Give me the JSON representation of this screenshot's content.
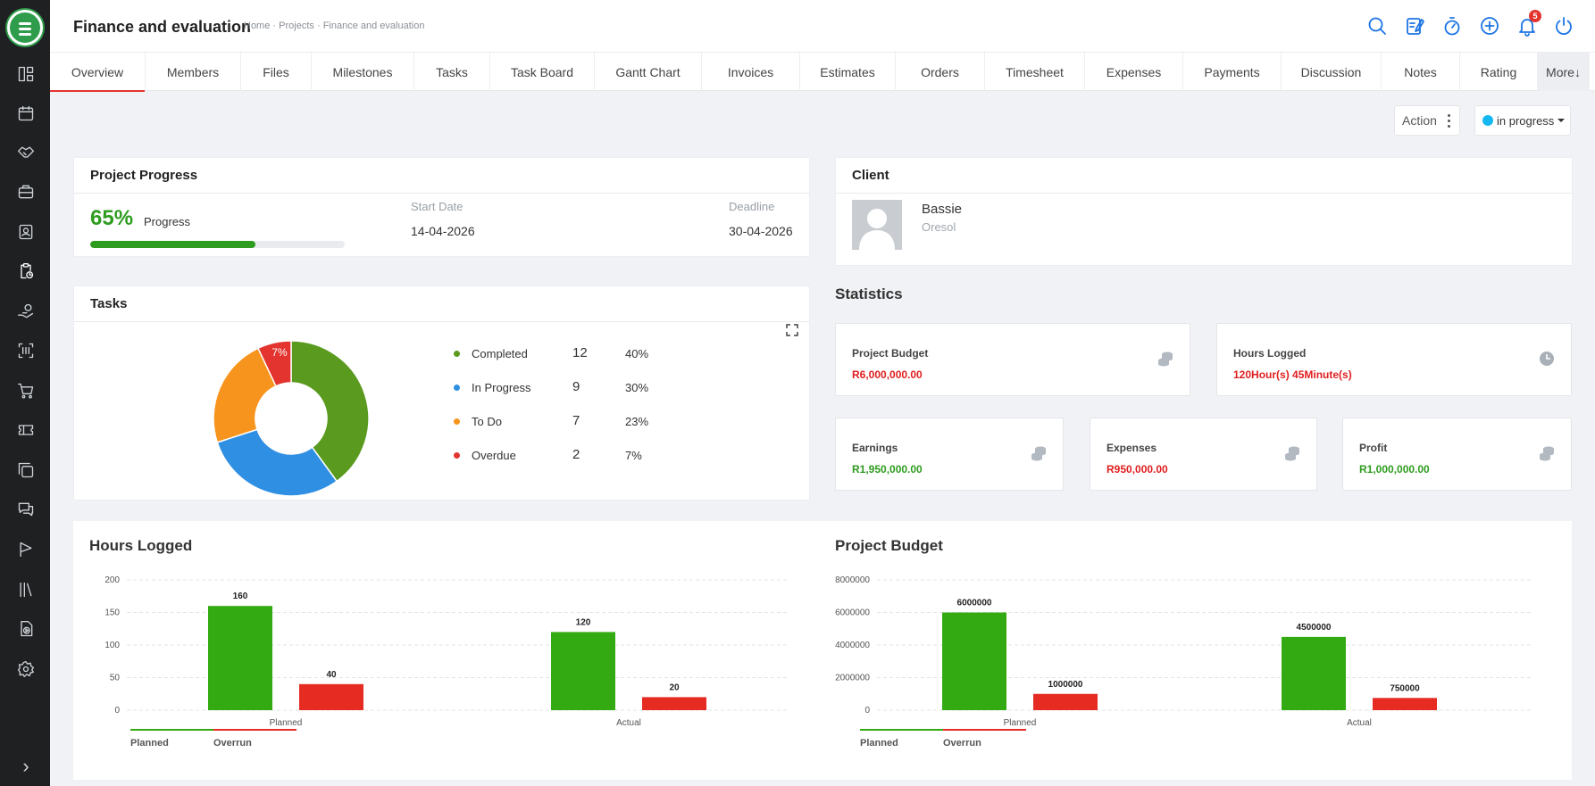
{
  "header": {
    "title": "Finance and evaluation",
    "breadcrumb": [
      "Home",
      "Projects",
      "Finance and evaluation"
    ],
    "breadcrumb_sep": "·",
    "notifications_count": "5",
    "icons": [
      "search-icon",
      "notes-icon",
      "timer-icon",
      "add-icon",
      "bell-icon",
      "power-icon"
    ]
  },
  "sidebar": {
    "icons": [
      "dashboard-icon",
      "calendar-icon",
      "handshake-icon",
      "briefcase-icon",
      "contacts-icon",
      "clipboard-clock-icon",
      "hand-money-icon",
      "scan-icon",
      "cart-icon",
      "ticket-icon",
      "copy-icon",
      "chat-icon",
      "flag-icon",
      "library-icon",
      "document-video-icon",
      "settings-icon"
    ],
    "expand_label": "›"
  },
  "tabs": [
    "Overview",
    "Members",
    "Files",
    "Milestones",
    "Tasks",
    "Task Board",
    "Gantt Chart",
    "Invoices",
    "Estimates",
    "Orders",
    "Timesheet",
    "Expenses",
    "Payments",
    "Discussion",
    "Notes",
    "Rating",
    "More↓"
  ],
  "active_tab": "Overview",
  "actions": {
    "action_label": "Action",
    "status_label": "in progress",
    "status_color": "#14b8f0"
  },
  "progress": {
    "title": "Project Progress",
    "percent_text": "65%",
    "percent_value": 65,
    "label": "Progress",
    "start_label": "Start Date",
    "start_value": "14-04-2026",
    "deadline_label": "Deadline",
    "deadline_value": "30-04-2026"
  },
  "client": {
    "title": "Client",
    "name": "Bassie",
    "company": "Oresol"
  },
  "tasks": {
    "title": "Tasks",
    "items": [
      {
        "name": "Completed",
        "count": "12",
        "pct": "40%",
        "value": 40,
        "color": "#5a9a1e"
      },
      {
        "name": "In Progress",
        "count": "9",
        "pct": "30%",
        "value": 30,
        "color": "#2f8fe3"
      },
      {
        "name": "To Do",
        "count": "7",
        "pct": "23%",
        "value": 23,
        "color": "#f7941d"
      },
      {
        "name": "Overdue",
        "count": "2",
        "pct": "7%",
        "value": 7,
        "color": "#e3342f"
      }
    ],
    "slice_label": "7%"
  },
  "statistics": {
    "title": "Statistics",
    "cards": [
      {
        "label": "Project Budget",
        "value": "R6,000,000.00",
        "color": "#e01e1e",
        "icon": "coins-icon"
      },
      {
        "label": "Hours Logged",
        "value": "120Hour(s) 45Minute(s)",
        "color": "#e01e1e",
        "icon": "clock-icon"
      },
      {
        "label": "Earnings",
        "value": "R1,950,000.00",
        "color": "#2e9c1f",
        "icon": "coins-icon"
      },
      {
        "label": "Expenses",
        "value": "R950,000.00",
        "color": "#e01e1e",
        "icon": "coins-icon"
      },
      {
        "label": "Profit",
        "value": "R1,000,000.00",
        "color": "#2e9c1f",
        "icon": "coins-icon"
      }
    ]
  },
  "chart_data": [
    {
      "type": "bar",
      "title": "Hours Logged",
      "categories": [
        "Planned",
        "Actual"
      ],
      "series": [
        {
          "name": "Planned",
          "values": [
            160,
            120
          ],
          "color": "#33aa11"
        },
        {
          "name": "Overrun",
          "values": [
            40,
            20
          ],
          "color": "#e52b22"
        }
      ],
      "ylim": [
        0,
        200
      ],
      "yticks": [
        "0",
        "50",
        "100",
        "150",
        "200"
      ],
      "grid": true,
      "legend_placement": "bottom-left"
    },
    {
      "type": "bar",
      "title": "Project Budget",
      "categories": [
        "Planned",
        "Actual"
      ],
      "series": [
        {
          "name": "Planned",
          "values": [
            6000000,
            4500000
          ],
          "color": "#33aa11"
        },
        {
          "name": "Overrun",
          "values": [
            1000000,
            750000
          ],
          "color": "#e52b22"
        }
      ],
      "ylim": [
        0,
        8000000
      ],
      "yticks": [
        "0",
        "2000000",
        "4000000",
        "6000000",
        "8000000"
      ],
      "grid": true,
      "legend_placement": "bottom-left"
    }
  ]
}
